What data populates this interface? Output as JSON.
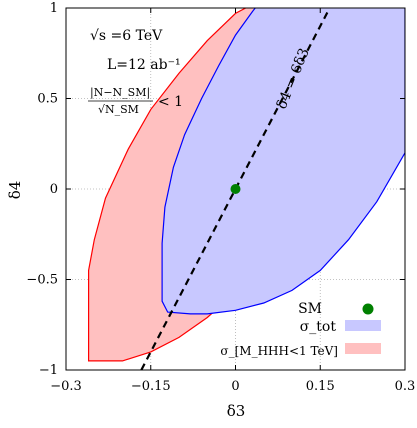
{
  "chart_data": {
    "type": "area",
    "title": "",
    "xlabel": "δ3",
    "ylabel": "δ4",
    "xlim": [
      -0.3,
      0.3
    ],
    "ylim": [
      -1,
      1
    ],
    "grid": true,
    "legend_placement": "bottom-right",
    "x_ticks": [
      -0.3,
      -0.15,
      0,
      0.15,
      0.3
    ],
    "x_tick_labels": [
      "−0.3",
      "−0.15",
      "0",
      "0.15",
      "0.3"
    ],
    "y_ticks": [
      -1,
      -0.5,
      0,
      0.5,
      1
    ],
    "y_tick_labels": [
      "−1",
      "−0.5",
      "0",
      "0.5",
      "1"
    ],
    "annotations": {
      "energy": "√s =6 TeV",
      "lumi": "L=12 ab⁻¹",
      "criterion_numerator": "|N−N_SM|",
      "criterion_denominator": "√N_SM",
      "criterion_rhs": "< 1",
      "line_label": "δ4 = 6δ3"
    },
    "series": [
      {
        "name": "σ_[M_HHH<1 TeV]",
        "kind": "region",
        "fill": "#ffc0c0",
        "edge": "#ff0000",
        "boundary": [
          [
            -0.26,
            -0.95
          ],
          [
            -0.26,
            -0.45
          ],
          [
            -0.25,
            -0.28
          ],
          [
            -0.23,
            -0.05
          ],
          [
            -0.19,
            0.22
          ],
          [
            -0.15,
            0.44
          ],
          [
            -0.1,
            0.64
          ],
          [
            -0.05,
            0.82
          ],
          [
            0.0,
            0.97
          ],
          [
            0.03,
            1.02
          ],
          [
            0.3,
            1.02
          ],
          [
            0.3,
            0.72
          ],
          [
            0.26,
            0.5
          ],
          [
            0.2,
            0.18
          ],
          [
            0.15,
            -0.05
          ],
          [
            0.1,
            -0.24
          ],
          [
            0.05,
            -0.42
          ],
          [
            0.0,
            -0.57
          ],
          [
            -0.05,
            -0.71
          ],
          [
            -0.1,
            -0.82
          ],
          [
            -0.15,
            -0.9
          ],
          [
            -0.2,
            -0.95
          ],
          [
            -0.26,
            -0.95
          ]
        ]
      },
      {
        "name": "σ_tot",
        "kind": "region",
        "fill": "#c8c8ff",
        "edge": "#0000ff",
        "boundary": [
          [
            0.3,
            0.2
          ],
          [
            0.25,
            -0.07
          ],
          [
            0.2,
            -0.28
          ],
          [
            0.15,
            -0.45
          ],
          [
            0.1,
            -0.56
          ],
          [
            0.05,
            -0.63
          ],
          [
            0.0,
            -0.67
          ],
          [
            -0.05,
            -0.69
          ],
          [
            -0.08,
            -0.69
          ],
          [
            -0.12,
            -0.68
          ],
          [
            -0.13,
            -0.62
          ],
          [
            -0.13,
            -0.5
          ],
          [
            -0.13,
            -0.3
          ],
          [
            -0.125,
            -0.1
          ],
          [
            -0.11,
            0.12
          ],
          [
            -0.09,
            0.3
          ],
          [
            -0.06,
            0.5
          ],
          [
            -0.03,
            0.68
          ],
          [
            0.0,
            0.85
          ],
          [
            0.03,
            0.98
          ],
          [
            0.04,
            1.02
          ],
          [
            0.3,
            1.02
          ],
          [
            0.3,
            0.2
          ]
        ]
      }
    ],
    "reference_line": {
      "slope": 6,
      "label": "δ4 = 6δ3",
      "style": "dashed"
    },
    "sm_point": {
      "name": "SM",
      "x": 0,
      "y": 0,
      "color": "#008000"
    },
    "legend": [
      {
        "label": "SM",
        "marker": "point",
        "color": "#008000"
      },
      {
        "label": "σ_tot",
        "marker": "box",
        "color": "#c8c8ff"
      },
      {
        "label": "σ_[M_HHH<1 TeV]",
        "marker": "box",
        "color": "#ffc0c0"
      }
    ]
  }
}
